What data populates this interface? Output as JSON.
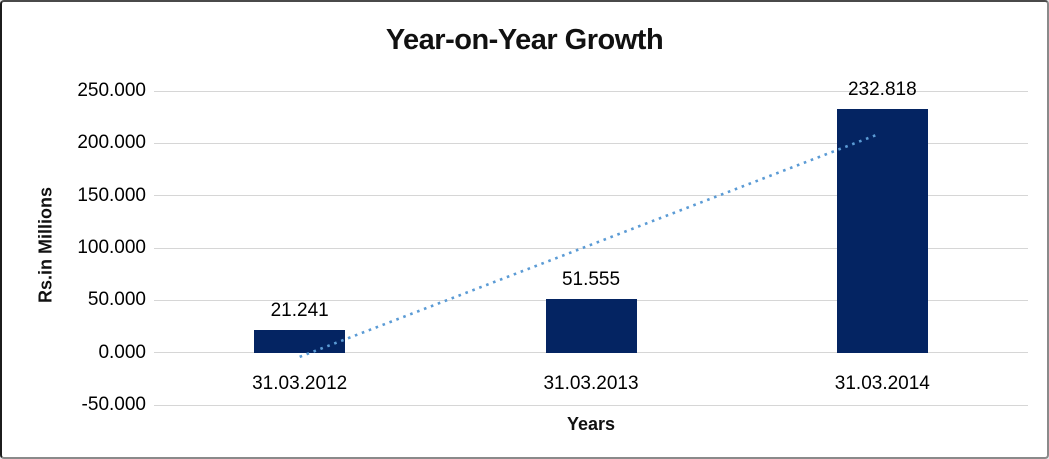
{
  "chart_data": {
    "type": "bar",
    "title": "Year-on-Year Growth",
    "xlabel": "Years",
    "ylabel": "Rs.in Millions",
    "categories": [
      "31.03.2012",
      "31.03.2013",
      "31.03.2014"
    ],
    "values": [
      21.241,
      51.555,
      232.818
    ],
    "value_labels": [
      "21.241",
      "51.555",
      "232.818"
    ],
    "ylim": [
      -50,
      250
    ],
    "yticks": [
      250,
      200,
      150,
      100,
      50,
      0,
      -50
    ],
    "ytick_labels": [
      "250.000",
      "200.000",
      "150.000",
      "100.000",
      "50.000",
      "0.000",
      "-50.000"
    ],
    "grid": true,
    "legend": "none",
    "bar_color": "#042462",
    "gridline_color": "#d6d6d6",
    "trendline": {
      "type": "linear",
      "style": "dotted",
      "color": "#5B9BD5",
      "start_category_index": 0,
      "end_category_index": 2,
      "start_value": -4,
      "end_value": 208
    }
  }
}
